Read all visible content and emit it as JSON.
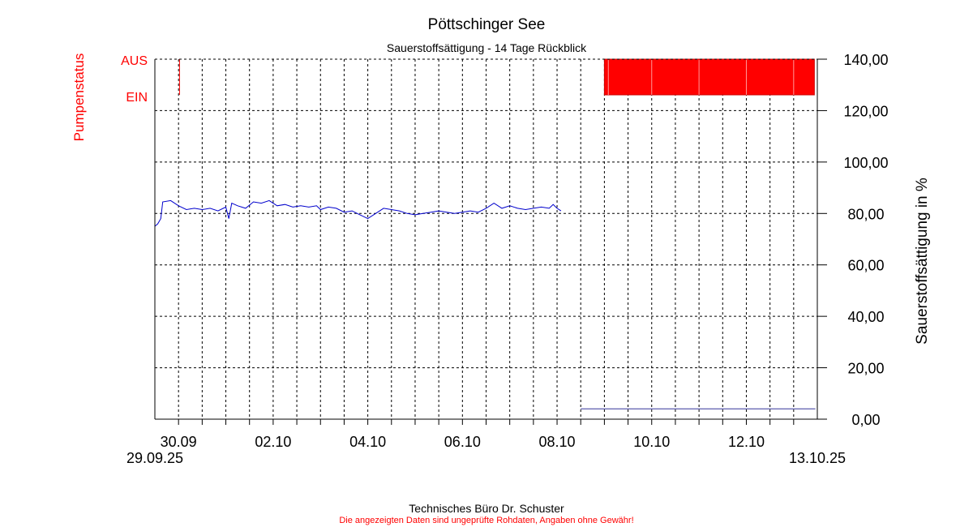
{
  "chart_data": {
    "type": "line",
    "title": "Pöttschinger See",
    "subtitle": "Sauerstoffsättigung - 14 Tage Rückblick",
    "ylabel": "Sauerstoffsättigung in %",
    "ylim": [
      0,
      140
    ],
    "yticks": [
      "0,00",
      "20,00",
      "40,00",
      "60,00",
      "80,00",
      "100,00",
      "120,00",
      "140,00"
    ],
    "xlim": [
      "2025-09-29T12:00",
      "2025-10-13T12:00"
    ],
    "xticks": [
      {
        "date": "2025-09-30",
        "label": "30.09"
      },
      {
        "date": "2025-10-02",
        "label": "02.10"
      },
      {
        "date": "2025-10-04",
        "label": "04.10"
      },
      {
        "date": "2025-10-06",
        "label": "06.10"
      },
      {
        "date": "2025-10-08",
        "label": "08.10"
      },
      {
        "date": "2025-10-10",
        "label": "10.10"
      },
      {
        "date": "2025-10-12",
        "label": "12.10"
      }
    ],
    "x_start_label": "29.09.25",
    "x_end_label": "13.10.25",
    "grid": true,
    "series": [
      {
        "color": "#0000cc",
        "points": [
          [
            "2025-09-29T12:00",
            75
          ],
          [
            "2025-09-29T13:30",
            76
          ],
          [
            "2025-09-29T15:00",
            78
          ],
          [
            "2025-09-29T16:00",
            84.5
          ],
          [
            "2025-09-29T20:00",
            85
          ],
          [
            "2025-09-30T00:00",
            83
          ],
          [
            "2025-09-30T04:00",
            81.5
          ],
          [
            "2025-09-30T08:00",
            82
          ],
          [
            "2025-09-30T12:00",
            81.5
          ],
          [
            "2025-09-30T16:00",
            82
          ],
          [
            "2025-09-30T20:00",
            81
          ],
          [
            "2025-10-01T00:00",
            82.5
          ],
          [
            "2025-10-01T01:30",
            78
          ],
          [
            "2025-10-01T03:00",
            84
          ],
          [
            "2025-10-01T06:00",
            83
          ],
          [
            "2025-10-01T10:00",
            82
          ],
          [
            "2025-10-01T14:00",
            84.5
          ],
          [
            "2025-10-01T18:00",
            84
          ],
          [
            "2025-10-01T22:00",
            85
          ],
          [
            "2025-10-02T02:00",
            83
          ],
          [
            "2025-10-02T06:00",
            83.5
          ],
          [
            "2025-10-02T10:00",
            82.5
          ],
          [
            "2025-10-02T14:00",
            83
          ],
          [
            "2025-10-02T18:00",
            82.5
          ],
          [
            "2025-10-02T22:00",
            83
          ],
          [
            "2025-10-03T00:00",
            81.5
          ],
          [
            "2025-10-03T04:00",
            82.5
          ],
          [
            "2025-10-03T08:00",
            82
          ],
          [
            "2025-10-03T12:00",
            80.5
          ],
          [
            "2025-10-03T16:00",
            81
          ],
          [
            "2025-10-03T20:00",
            79.5
          ],
          [
            "2025-10-04T00:00",
            78
          ],
          [
            "2025-10-04T04:00",
            80
          ],
          [
            "2025-10-04T08:00",
            82
          ],
          [
            "2025-10-04T12:00",
            81.5
          ],
          [
            "2025-10-04T16:00",
            81
          ],
          [
            "2025-10-04T20:00",
            80
          ],
          [
            "2025-10-05T00:00",
            79.5
          ],
          [
            "2025-10-05T04:00",
            80
          ],
          [
            "2025-10-05T08:00",
            80.5
          ],
          [
            "2025-10-05T12:00",
            81
          ],
          [
            "2025-10-05T16:00",
            80.5
          ],
          [
            "2025-10-05T20:00",
            80
          ],
          [
            "2025-10-06T00:00",
            80.5
          ],
          [
            "2025-10-06T04:00",
            81
          ],
          [
            "2025-10-06T08:00",
            80.5
          ],
          [
            "2025-10-06T12:00",
            82
          ],
          [
            "2025-10-06T16:00",
            84
          ],
          [
            "2025-10-06T20:00",
            82
          ],
          [
            "2025-10-07T00:00",
            83
          ],
          [
            "2025-10-07T04:00",
            82
          ],
          [
            "2025-10-07T08:00",
            81.5
          ],
          [
            "2025-10-07T12:00",
            82
          ],
          [
            "2025-10-07T16:00",
            82.5
          ],
          [
            "2025-10-07T20:00",
            82
          ],
          [
            "2025-10-07T22:00",
            83.5
          ],
          [
            "2025-10-08T00:00",
            82
          ],
          [
            "2025-10-08T02:00",
            81
          ]
        ]
      },
      {
        "color": "#333399",
        "points": [
          [
            "2025-10-08T12:00",
            4
          ],
          [
            "2025-10-13T11:00",
            4
          ]
        ]
      }
    ],
    "pump_status": {
      "axis_label": "Pumpenstatus",
      "labels": {
        "off": "AUS",
        "on": "EIN"
      },
      "color": "#ff0000",
      "on_segments": [
        [
          "2025-09-30T00:30",
          "2025-09-30T01:00"
        ],
        [
          "2025-10-09T00:00",
          "2025-10-13T10:30"
        ]
      ],
      "separators": [
        "2025-10-09T02:00",
        "2025-10-10T00:00",
        "2025-10-11T00:00",
        "2025-10-12T00:00",
        "2025-10-13T00:00"
      ]
    }
  },
  "footer": {
    "company": "Technisches Büro Dr. Schuster",
    "disclaimer": "Die angezeigten Daten sind ungeprüfte Rohdaten, Angaben ohne Gewähr!"
  }
}
